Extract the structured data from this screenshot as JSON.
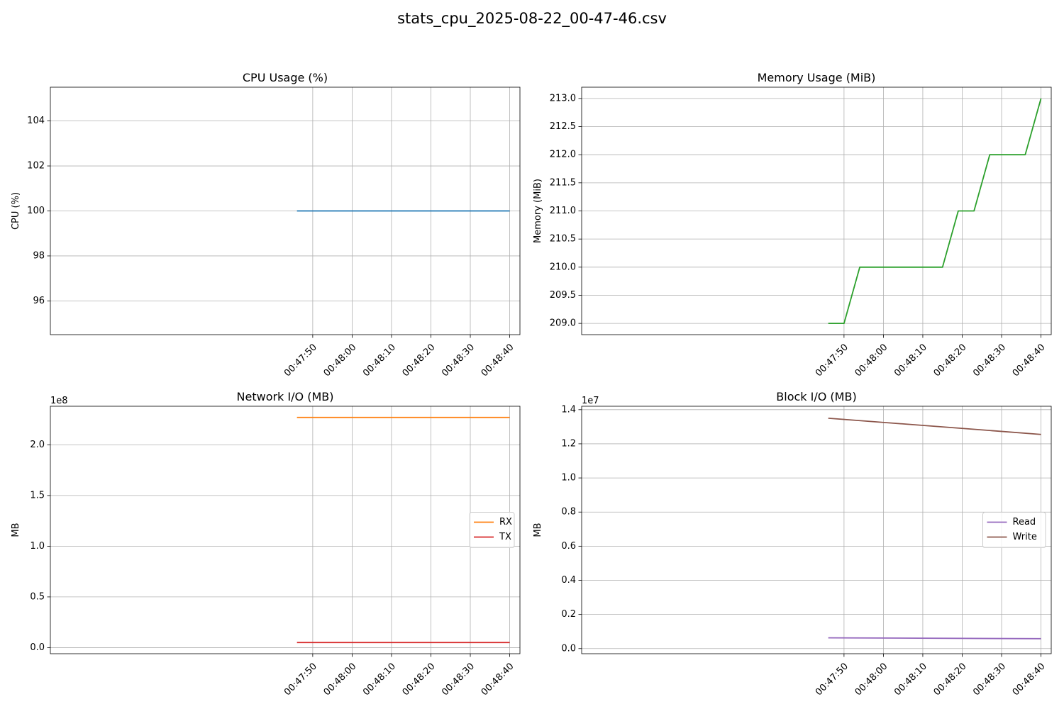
{
  "suptitle": "stats_cpu_2025-08-22_00-47-46.csv",
  "x_tick_labels": [
    "00:47:50",
    "00:48:00",
    "00:48:10",
    "00:48:20",
    "00:48:30",
    "00:48:40"
  ],
  "chart_data": [
    {
      "id": "cpu",
      "type": "line",
      "title": "CPU Usage (%)",
      "xlabel": "",
      "ylabel": "CPU (%)",
      "ylim": [
        94.5,
        105.5
      ],
      "yticks": [
        96,
        98,
        100,
        102,
        104
      ],
      "ytick_decimals": 0,
      "offset_label": "",
      "grid": true,
      "legend": null,
      "x": [
        "00:47:46",
        "00:48:40"
      ],
      "series": [
        {
          "color": "#1f77b4",
          "values": [
            100,
            100
          ]
        }
      ]
    },
    {
      "id": "memory",
      "type": "line",
      "title": "Memory Usage (MiB)",
      "xlabel": "",
      "ylabel": "Memory (MiB)",
      "ylim": [
        208.8,
        213.2
      ],
      "yticks": [
        209.0,
        209.5,
        210.0,
        210.5,
        211.0,
        211.5,
        212.0,
        212.5,
        213.0
      ],
      "ytick_decimals": 1,
      "offset_label": "",
      "grid": true,
      "legend": null,
      "x": [
        "00:47:46",
        "00:47:50",
        "00:47:54",
        "00:48:15",
        "00:48:19",
        "00:48:23",
        "00:48:27",
        "00:48:36",
        "00:48:40"
      ],
      "series": [
        {
          "color": "#2ca02c",
          "values": [
            209,
            209,
            210,
            210,
            211,
            211,
            212,
            212,
            213
          ]
        }
      ]
    },
    {
      "id": "network",
      "type": "line",
      "title": "Network I/O (MB)",
      "xlabel": "",
      "ylabel": "MB",
      "ylim": [
        -0.06,
        2.38
      ],
      "yticks": [
        0.0,
        0.5,
        1.0,
        1.5,
        2.0
      ],
      "ytick_decimals": 1,
      "offset_label": "1e8",
      "grid": true,
      "legend": "center right",
      "x": [
        "00:47:46",
        "00:48:40"
      ],
      "series": [
        {
          "name": "RX",
          "color": "#ff7f0e",
          "values": [
            2.27,
            2.27
          ]
        },
        {
          "name": "TX",
          "color": "#d62728",
          "values": [
            0.05,
            0.05
          ]
        }
      ]
    },
    {
      "id": "block",
      "type": "line",
      "title": "Block I/O (MB)",
      "xlabel": "",
      "ylabel": "MB",
      "ylim": [
        -0.03,
        1.42
      ],
      "yticks": [
        0.0,
        0.2,
        0.4,
        0.6,
        0.8,
        1.0,
        1.2,
        1.4
      ],
      "ytick_decimals": 1,
      "offset_label": "1e7",
      "grid": true,
      "legend": "center right",
      "x": [
        "00:47:46",
        "00:48:40"
      ],
      "series": [
        {
          "name": "Read",
          "color": "#9467bd",
          "values": [
            0.063,
            0.058
          ]
        },
        {
          "name": "Write",
          "color": "#8c564b",
          "values": [
            1.35,
            1.255
          ]
        }
      ]
    }
  ]
}
